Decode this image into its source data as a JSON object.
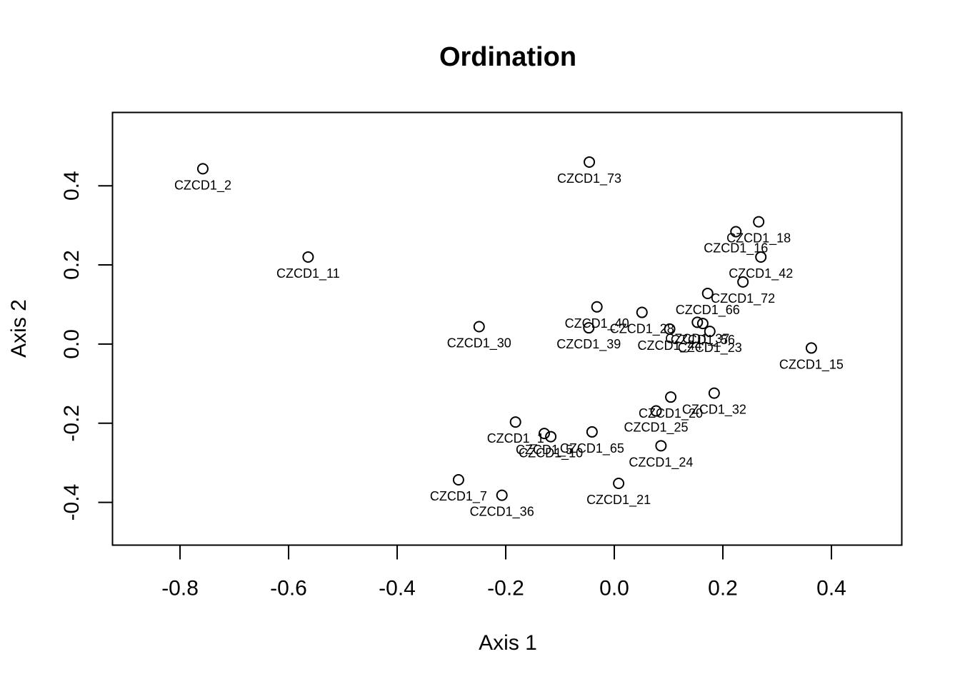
{
  "chart_data": {
    "type": "scatter",
    "title": "Ordination",
    "xlabel": "Axis 1",
    "ylabel": "Axis 2",
    "xlim": [
      -0.9244,
      0.5296
    ],
    "ylim": [
      -0.5081,
      0.5853
    ],
    "xticks": [
      -0.8,
      -0.6,
      -0.4,
      -0.2,
      0.0,
      0.2,
      0.4
    ],
    "xtick_labels": [
      "-0.8",
      "-0.6",
      "-0.4",
      "-0.2",
      "0.0",
      "0.2",
      "0.4"
    ],
    "yticks": [
      -0.4,
      -0.2,
      0.0,
      0.2,
      0.4
    ],
    "ytick_labels": [
      "-0.4",
      "-0.2",
      "0.0",
      "0.2",
      "0.4"
    ],
    "grid": false,
    "points": [
      {
        "label": "CZCD1_2",
        "x": -0.758,
        "y": 0.443
      },
      {
        "label": "CZCD1_73",
        "x": -0.046,
        "y": 0.46
      },
      {
        "label": "CZCD1_11",
        "x": -0.564,
        "y": 0.22
      },
      {
        "label": "CZCD1_18",
        "x": 0.266,
        "y": 0.309
      },
      {
        "label": "CZCD1_16",
        "x": 0.224,
        "y": 0.284
      },
      {
        "label": "CZCD1_42",
        "x": 0.27,
        "y": 0.22
      },
      {
        "label": "CZCD1_72",
        "x": 0.237,
        "y": 0.157
      },
      {
        "label": "CZCD1_66",
        "x": 0.172,
        "y": 0.128
      },
      {
        "label": "CZCD1_40",
        "x": -0.032,
        "y": 0.094
      },
      {
        "label": "CZCD1_28",
        "x": 0.051,
        "y": 0.08
      },
      {
        "label": "CZCD1_30",
        "x": -0.249,
        "y": 0.044
      },
      {
        "label": "CZCD1_39",
        "x": -0.047,
        "y": 0.041
      },
      {
        "label": "CZCD1_37",
        "x": 0.153,
        "y": 0.055
      },
      {
        "label": "CZCD1_56",
        "x": 0.163,
        "y": 0.052
      },
      {
        "label": "CZCD1_23",
        "x": 0.176,
        "y": 0.032
      },
      {
        "label": "CZCD1_44",
        "x": 0.102,
        "y": 0.038
      },
      {
        "label": "CZCD1_15",
        "x": 0.363,
        "y": -0.01
      },
      {
        "label": "CZCD1_32",
        "x": 0.184,
        "y": -0.124
      },
      {
        "label": "CZCD1_20",
        "x": 0.104,
        "y": -0.134
      },
      {
        "label": "CZCD1_25",
        "x": 0.077,
        "y": -0.169
      },
      {
        "label": "CZCD1_1",
        "x": -0.182,
        "y": -0.197
      },
      {
        "label": "CZCD1_5",
        "x": -0.129,
        "y": -0.226
      },
      {
        "label": "CZCD1_10",
        "x": -0.117,
        "y": -0.234
      },
      {
        "label": "CZCD1_65",
        "x": -0.041,
        "y": -0.222
      },
      {
        "label": "CZCD1_24",
        "x": 0.086,
        "y": -0.257
      },
      {
        "label": "CZCD1_21",
        "x": 0.008,
        "y": -0.352
      },
      {
        "label": "CZCD1_7",
        "x": -0.287,
        "y": -0.343
      },
      {
        "label": "CZCD1_36",
        "x": -0.207,
        "y": -0.382
      }
    ]
  }
}
